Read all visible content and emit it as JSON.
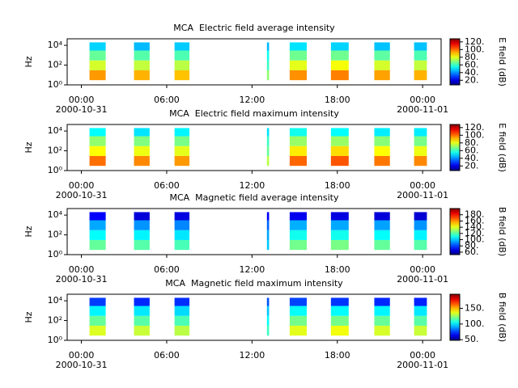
{
  "chart_data": [
    {
      "type": "heatmap",
      "title": "MCA  Electric field average intensity",
      "y_label": "Hz",
      "colorbar_label": "E field (dB)",
      "colormap": "jet",
      "log_y": true,
      "segments": [
        [
          0.57,
          1.71
        ],
        [
          3.7,
          4.8
        ],
        [
          6.55,
          7.6
        ],
        [
          13.05,
          13.2
        ],
        [
          14.65,
          15.85
        ],
        [
          17.55,
          18.8
        ],
        [
          20.6,
          21.7
        ],
        [
          23.4,
          24.3
        ]
      ],
      "bands": [
        3,
        30,
        300,
        3000,
        20000
      ],
      "values": [
        [
          95,
          78,
          65,
          48
        ],
        [
          92,
          76,
          63,
          45
        ],
        [
          90,
          75,
          62,
          47
        ],
        [
          70,
          60,
          55,
          45
        ],
        [
          96,
          80,
          66,
          50
        ],
        [
          98,
          82,
          66,
          48
        ],
        [
          94,
          78,
          64,
          46
        ],
        [
          92,
          76,
          62,
          46
        ]
      ],
      "xlim": [
        -1,
        25.3
      ],
      "xticks": [
        {
          "value": 0,
          "label": "00:00"
        },
        {
          "value": 6,
          "label": "06:00"
        },
        {
          "value": 12,
          "label": "12:00"
        },
        {
          "value": 18,
          "label": "18:00"
        },
        {
          "value": 24,
          "label": "00:00"
        }
      ],
      "date_labels": [
        {
          "value": 0,
          "label": "2000-10-31"
        },
        {
          "value": 24,
          "label": "2000-11-01"
        }
      ],
      "ylim": [
        1,
        46000
      ],
      "yticks": [
        {
          "value": 1,
          "label": "10⁰"
        },
        {
          "value": 100,
          "label": "10²"
        },
        {
          "value": 10000,
          "label": "10⁴"
        }
      ],
      "clim": [
        8,
        128
      ],
      "cticks": [
        {
          "value": 20,
          "label": "20."
        },
        {
          "value": 40,
          "label": "40."
        },
        {
          "value": 60,
          "label": "60."
        },
        {
          "value": 80,
          "label": "80."
        },
        {
          "value": 100,
          "label": "100."
        },
        {
          "value": 120,
          "label": "120."
        }
      ]
    },
    {
      "type": "heatmap",
      "title": "MCA  Electric field maximum intensity",
      "y_label": "Hz",
      "colorbar_label": "E field (dB)",
      "colormap": "jet",
      "log_y": true,
      "segments": [
        [
          0.57,
          1.71
        ],
        [
          3.7,
          4.8
        ],
        [
          6.55,
          7.6
        ],
        [
          13.05,
          13.2
        ],
        [
          14.65,
          15.85
        ],
        [
          17.55,
          18.8
        ],
        [
          20.6,
          21.7
        ],
        [
          23.4,
          24.3
        ]
      ],
      "bands": [
        3,
        30,
        300,
        3000,
        20000
      ],
      "values": [
        [
          100,
          83,
          70,
          53
        ],
        [
          97,
          81,
          68,
          50
        ],
        [
          95,
          80,
          67,
          52
        ],
        [
          75,
          65,
          60,
          50
        ],
        [
          101,
          85,
          71,
          55
        ],
        [
          103,
          87,
          71,
          53
        ],
        [
          99,
          83,
          69,
          51
        ],
        [
          97,
          81,
          67,
          51
        ]
      ],
      "xlim": [
        -1,
        25.3
      ],
      "xticks": [
        {
          "value": 0,
          "label": "00:00"
        },
        {
          "value": 6,
          "label": "06:00"
        },
        {
          "value": 12,
          "label": "12:00"
        },
        {
          "value": 18,
          "label": "18:00"
        },
        {
          "value": 24,
          "label": "00:00"
        }
      ],
      "date_labels": [
        {
          "value": 0,
          "label": "2000-10-31"
        },
        {
          "value": 24,
          "label": "2000-11-01"
        }
      ],
      "ylim": [
        1,
        46000
      ],
      "yticks": [
        {
          "value": 1,
          "label": "10⁰"
        },
        {
          "value": 100,
          "label": "10²"
        },
        {
          "value": 10000,
          "label": "10⁴"
        }
      ],
      "clim": [
        8,
        128
      ],
      "cticks": [
        {
          "value": 20,
          "label": "20."
        },
        {
          "value": 40,
          "label": "40."
        },
        {
          "value": 60,
          "label": "60."
        },
        {
          "value": 80,
          "label": "80."
        },
        {
          "value": 100,
          "label": "100."
        },
        {
          "value": 120,
          "label": "120."
        }
      ]
    },
    {
      "type": "heatmap",
      "title": "MCA  Magnetic field average intensity",
      "y_label": "Hz",
      "colorbar_label": "B field (dB)",
      "colormap": "jet",
      "log_y": true,
      "segments": [
        [
          0.57,
          1.71
        ],
        [
          3.7,
          4.8
        ],
        [
          6.55,
          7.6
        ],
        [
          13.05,
          13.2
        ],
        [
          14.65,
          15.85
        ],
        [
          17.55,
          18.8
        ],
        [
          20.6,
          21.7
        ],
        [
          23.4,
          24.3
        ]
      ],
      "bands": [
        3,
        30,
        300,
        3000,
        20000
      ],
      "values": [
        [
          122,
          108,
          95,
          70
        ],
        [
          120,
          106,
          92,
          65
        ],
        [
          118,
          104,
          90,
          66
        ],
        [
          100,
          95,
          85,
          70
        ],
        [
          124,
          110,
          96,
          68
        ],
        [
          125,
          110,
          95,
          66
        ],
        [
          122,
          108,
          94,
          65
        ],
        [
          120,
          106,
          92,
          64
        ]
      ],
      "xlim": [
        -1,
        25.3
      ],
      "xticks": [
        {
          "value": 0,
          "label": "00:00"
        },
        {
          "value": 6,
          "label": "06:00"
        },
        {
          "value": 12,
          "label": "12:00"
        },
        {
          "value": 18,
          "label": "18:00"
        },
        {
          "value": 24,
          "label": "00:00"
        }
      ],
      "date_labels": [
        {
          "value": 0,
          "label": "2000-10-31"
        },
        {
          "value": 24,
          "label": "2000-11-01"
        }
      ],
      "ylim": [
        1,
        46000
      ],
      "yticks": [
        {
          "value": 1,
          "label": "10⁰"
        },
        {
          "value": 100,
          "label": "10²"
        },
        {
          "value": 10000,
          "label": "10⁴"
        }
      ],
      "clim": [
        52,
        200
      ],
      "cticks": [
        {
          "value": 60,
          "label": "60."
        },
        {
          "value": 80,
          "label": "80."
        },
        {
          "value": 100,
          "label": "100."
        },
        {
          "value": 120,
          "label": "120."
        },
        {
          "value": 140,
          "label": "140."
        },
        {
          "value": 160,
          "label": "160."
        },
        {
          "value": 180,
          "label": "180."
        }
      ]
    },
    {
      "type": "heatmap",
      "title": "MCA  Magnetic field maximum intensity",
      "y_label": "Hz",
      "colorbar_label": "B field (dB)",
      "colormap": "jet",
      "log_y": true,
      "segments": [
        [
          0.57,
          1.71
        ],
        [
          3.7,
          4.8
        ],
        [
          6.55,
          7.6
        ],
        [
          13.05,
          13.2
        ],
        [
          14.65,
          15.85
        ],
        [
          17.55,
          18.8
        ],
        [
          20.6,
          21.7
        ],
        [
          23.4,
          24.3
        ]
      ],
      "bands": [
        3,
        30,
        300,
        3000,
        20000
      ],
      "values": [
        [
          135,
          118,
          102,
          75
        ],
        [
          132,
          116,
          100,
          72
        ],
        [
          130,
          114,
          98,
          73
        ],
        [
          112,
          104,
          95,
          78
        ],
        [
          136,
          120,
          104,
          76
        ],
        [
          138,
          120,
          103,
          74
        ],
        [
          134,
          118,
          102,
          72
        ],
        [
          132,
          116,
          100,
          71
        ]
      ],
      "xlim": [
        -1,
        25.3
      ],
      "xticks": [
        {
          "value": 0,
          "label": "00:00"
        },
        {
          "value": 6,
          "label": "06:00"
        },
        {
          "value": 12,
          "label": "12:00"
        },
        {
          "value": 18,
          "label": "18:00"
        },
        {
          "value": 24,
          "label": "00:00"
        }
      ],
      "date_labels": [
        {
          "value": 0,
          "label": "2000-10-31"
        },
        {
          "value": 24,
          "label": "2000-11-01"
        }
      ],
      "ylim": [
        1,
        46000
      ],
      "yticks": [
        {
          "value": 1,
          "label": "10⁰"
        },
        {
          "value": 100,
          "label": "10²"
        },
        {
          "value": 10000,
          "label": "10⁴"
        }
      ],
      "clim": [
        48,
        195
      ],
      "cticks": [
        {
          "value": 50,
          "label": "50."
        },
        {
          "value": 100,
          "label": "100."
        },
        {
          "value": 150,
          "label": "150."
        }
      ]
    }
  ]
}
